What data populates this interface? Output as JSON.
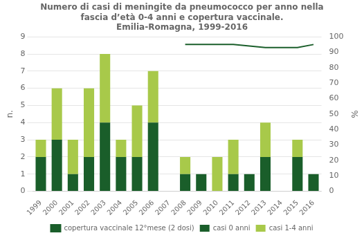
{
  "chart_data": {
    "type": "bar",
    "title": "Numero di casi di meningite da pneumococco per anno nella\nfascia d’età 0-4 anni e copertura vaccinale.\nEmilia-Romagna, 1999-2016",
    "categories": [
      "1999",
      "2000",
      "2001",
      "2002",
      "2003",
      "2004",
      "2005",
      "2006",
      "2007",
      "2008",
      "2009",
      "2010",
      "2011",
      "2012",
      "2013",
      "2014",
      "2015",
      "2016"
    ],
    "series": [
      {
        "name": "casi 0 anni",
        "type": "bar",
        "color": "#1a5e2a",
        "values": [
          2,
          3,
          1,
          2,
          4,
          2,
          2,
          4,
          0,
          1,
          1,
          0,
          1,
          1,
          2,
          0,
          2,
          1
        ]
      },
      {
        "name": "casi 1-4 anni",
        "type": "bar",
        "color": "#a8c94a",
        "values": [
          1,
          3,
          2,
          4,
          4,
          1,
          3,
          3,
          0,
          1,
          0,
          2,
          2,
          0,
          2,
          0,
          1,
          0
        ]
      },
      {
        "name": "copertura vaccinale 12°mese (2 dosi)",
        "type": "line",
        "axis": "y2",
        "color": "#1a5e2a",
        "values": [
          null,
          null,
          null,
          null,
          null,
          null,
          null,
          null,
          null,
          95,
          95,
          95,
          95,
          94,
          93,
          93,
          93,
          95
        ]
      }
    ],
    "stacked": true,
    "ylabel": "n.",
    "y2label": "%",
    "ylim": [
      0,
      9
    ],
    "yticks": [
      0,
      1,
      2,
      3,
      4,
      5,
      6,
      7,
      8,
      9
    ],
    "y2lim": [
      0,
      100
    ],
    "y2ticks": [
      0,
      10,
      20,
      30,
      40,
      50,
      60,
      70,
      80,
      90,
      100
    ],
    "grid": true,
    "legend": "bottom"
  }
}
